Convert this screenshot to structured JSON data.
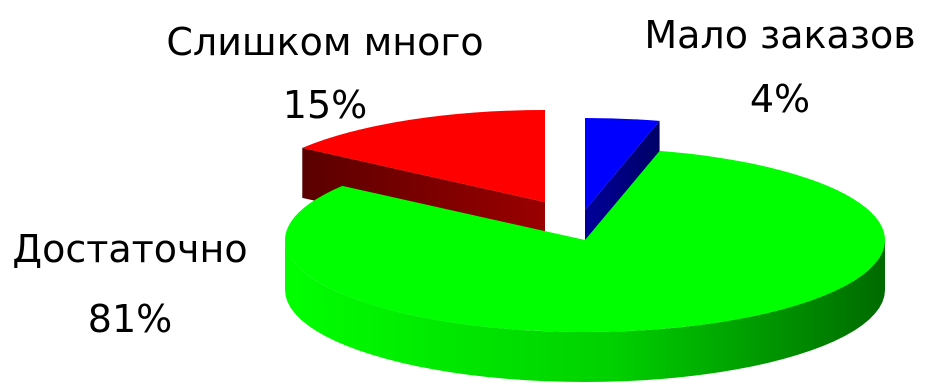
{
  "chart_data": {
    "type": "pie",
    "style": "3d-exploded",
    "slices": [
      {
        "label": "Мало заказов",
        "value": 4,
        "display": "4%",
        "color": "#0000ff",
        "dark": "#00008a"
      },
      {
        "label": "Достаточно",
        "value": 81,
        "display": "81%",
        "color": "#00ff00",
        "dark": "#007a00"
      },
      {
        "label": "Слишком много",
        "value": 15,
        "display": "15%",
        "color": "#ff0000",
        "dark": "#7a0000"
      }
    ]
  }
}
